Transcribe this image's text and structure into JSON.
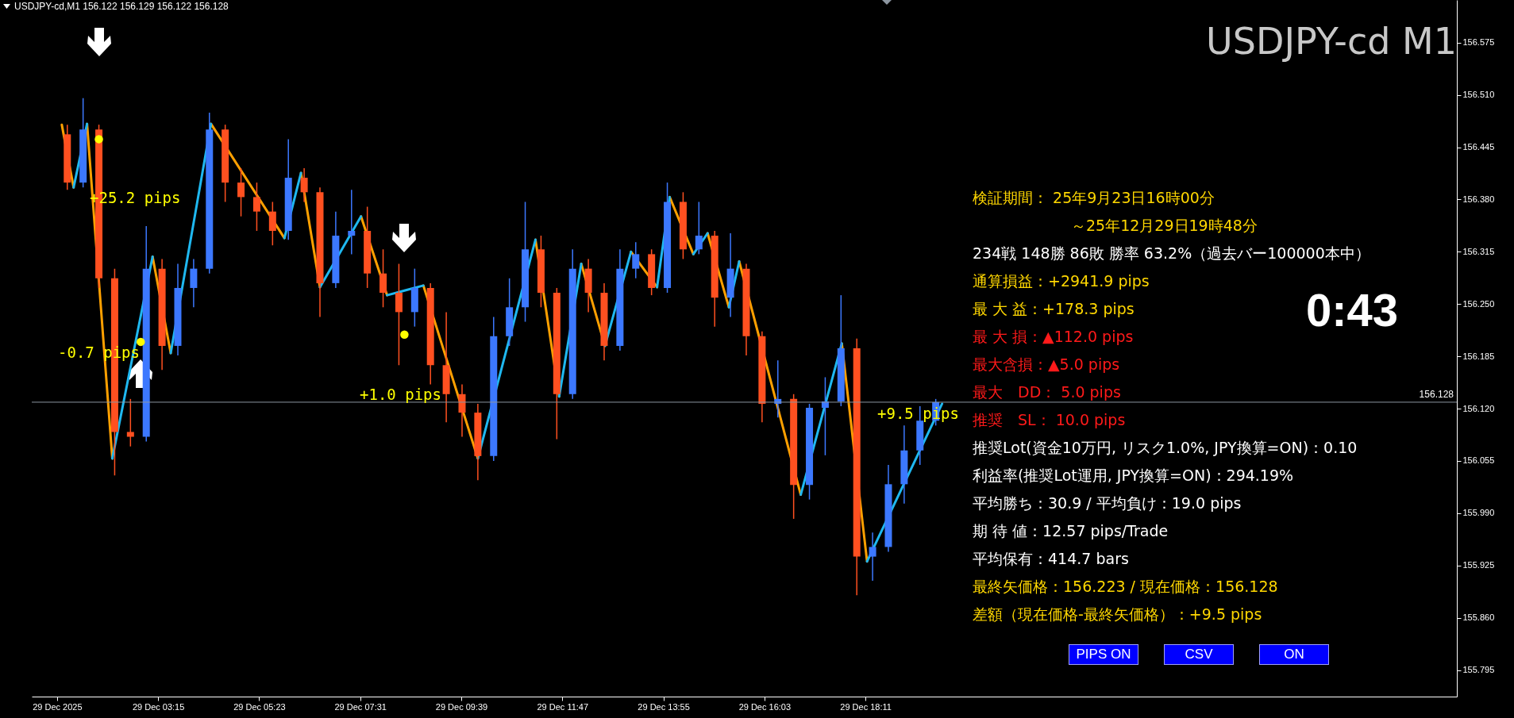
{
  "chart_data": {
    "type": "candlestick",
    "title": "USDJPY-cd M1",
    "x": [
      "2025-12-29T01:20",
      "2025-12-29T01:40",
      "2025-12-29T02:00",
      "2025-12-29T02:20",
      "2025-12-29T02:40",
      "2025-12-29T03:00",
      "2025-12-29T03:20",
      "2025-12-29T03:40",
      "2025-12-29T04:00",
      "2025-12-29T04:20",
      "2025-12-29T04:40",
      "2025-12-29T05:00",
      "2025-12-29T05:20",
      "2025-12-29T05:40",
      "2025-12-29T06:00",
      "2025-12-29T06:20",
      "2025-12-29T06:40",
      "2025-12-29T07:00",
      "2025-12-29T07:20",
      "2025-12-29T07:40",
      "2025-12-29T08:00",
      "2025-12-29T08:20",
      "2025-12-29T08:40",
      "2025-12-29T09:00",
      "2025-12-29T09:20",
      "2025-12-29T09:40",
      "2025-12-29T10:00",
      "2025-12-29T10:20",
      "2025-12-29T10:40",
      "2025-12-29T11:00",
      "2025-12-29T11:20",
      "2025-12-29T11:40",
      "2025-12-29T12:00",
      "2025-12-29T12:20",
      "2025-12-29T12:40",
      "2025-12-29T13:00",
      "2025-12-29T13:20",
      "2025-12-29T13:40",
      "2025-12-29T14:00",
      "2025-12-29T14:20",
      "2025-12-29T14:40",
      "2025-12-29T15:00",
      "2025-12-29T15:20",
      "2025-12-29T15:40",
      "2025-12-29T16:00",
      "2025-12-29T16:20",
      "2025-12-29T16:40",
      "2025-12-29T17:00",
      "2025-12-29T17:20",
      "2025-12-29T17:40",
      "2025-12-29T18:00",
      "2025-12-29T18:20",
      "2025-12-29T18:40",
      "2025-12-29T19:00",
      "2025-12-29T19:20",
      "2025-12-29T19:40"
    ],
    "ohlc": [
      [
        156.461,
        156.473,
        156.392,
        156.401
      ],
      [
        156.401,
        156.506,
        156.395,
        156.467
      ],
      [
        156.467,
        156.473,
        156.27,
        156.282
      ],
      [
        156.282,
        156.294,
        156.037,
        156.091
      ],
      [
        156.091,
        156.132,
        156.073,
        156.085
      ],
      [
        156.085,
        156.347,
        156.079,
        156.294
      ],
      [
        156.294,
        156.306,
        156.168,
        156.198
      ],
      [
        156.198,
        156.3,
        156.186,
        156.27
      ],
      [
        156.27,
        156.306,
        156.246,
        156.294
      ],
      [
        156.294,
        156.488,
        156.288,
        156.467
      ],
      [
        156.467,
        156.473,
        156.377,
        156.401
      ],
      [
        156.401,
        156.419,
        156.359,
        156.383
      ],
      [
        156.383,
        156.401,
        156.341,
        156.365
      ],
      [
        156.365,
        156.377,
        156.323,
        156.341
      ],
      [
        156.341,
        156.455,
        156.33,
        156.407
      ],
      [
        156.407,
        156.419,
        156.377,
        156.389
      ],
      [
        156.389,
        156.395,
        156.234,
        156.276
      ],
      [
        156.276,
        156.365,
        156.27,
        156.335
      ],
      [
        156.335,
        156.392,
        156.312,
        156.341
      ],
      [
        156.341,
        156.371,
        156.27,
        156.288
      ],
      [
        156.288,
        156.318,
        156.246,
        156.264
      ],
      [
        156.264,
        156.3,
        156.174,
        156.24
      ],
      [
        156.24,
        156.294,
        156.222,
        156.27
      ],
      [
        156.27,
        156.276,
        156.15,
        156.174
      ],
      [
        156.174,
        156.24,
        156.103,
        156.138
      ],
      [
        156.138,
        156.15,
        156.085,
        156.115
      ],
      [
        156.115,
        156.126,
        156.031,
        156.061
      ],
      [
        156.061,
        156.234,
        156.055,
        156.21
      ],
      [
        156.21,
        156.282,
        156.198,
        156.246
      ],
      [
        156.246,
        156.377,
        156.228,
        156.318
      ],
      [
        156.318,
        156.335,
        156.246,
        156.264
      ],
      [
        156.264,
        156.27,
        156.082,
        156.138
      ],
      [
        156.138,
        156.318,
        156.132,
        156.294
      ],
      [
        156.294,
        156.306,
        156.24,
        156.264
      ],
      [
        156.264,
        156.276,
        156.18,
        156.198
      ],
      [
        156.198,
        156.318,
        156.192,
        156.294
      ],
      [
        156.294,
        156.327,
        156.282,
        156.312
      ],
      [
        156.312,
        156.318,
        156.261,
        156.27
      ],
      [
        156.27,
        156.401,
        156.264,
        156.377
      ],
      [
        156.377,
        156.389,
        156.306,
        156.318
      ],
      [
        156.318,
        156.377,
        156.312,
        156.335
      ],
      [
        156.335,
        156.341,
        156.222,
        156.258
      ],
      [
        156.258,
        156.338,
        156.234,
        156.294
      ],
      [
        156.294,
        156.3,
        156.186,
        156.21
      ],
      [
        156.21,
        156.216,
        156.103,
        156.126
      ],
      [
        156.126,
        156.18,
        156.109,
        156.132
      ],
      [
        156.132,
        156.138,
        155.983,
        156.025
      ],
      [
        156.025,
        156.126,
        156.007,
        156.121
      ],
      [
        156.121,
        156.159,
        156.062,
        156.129
      ],
      [
        156.129,
        156.261,
        156.123,
        156.195
      ],
      [
        156.195,
        156.207,
        155.888,
        155.936
      ],
      [
        155.936,
        155.966,
        155.906,
        155.948
      ],
      [
        155.948,
        156.05,
        155.942,
        156.026
      ],
      [
        156.026,
        156.099,
        156.002,
        156.068
      ],
      [
        156.068,
        156.123,
        156.05,
        156.105
      ],
      [
        156.105,
        156.132,
        156.099,
        156.128
      ]
    ],
    "colors": [
      "#ff5020",
      "#3c78ff",
      "#ff5020",
      "#ff5020",
      "#ff5020",
      "#3c78ff",
      "#ff5020",
      "#3c78ff",
      "#3c78ff",
      "#3c78ff",
      "#ff5020",
      "#ff5020",
      "#ff5020",
      "#ff5020",
      "#3c78ff",
      "#ff5020",
      "#ff5020",
      "#3c78ff",
      "#3c78ff",
      "#ff5020",
      "#ff5020",
      "#ff5020",
      "#3c78ff",
      "#ff5020",
      "#ff5020",
      "#ff5020",
      "#ff5020",
      "#3c78ff",
      "#3c78ff",
      "#3c78ff",
      "#ff5020",
      "#ff5020",
      "#3c78ff",
      "#ff5020",
      "#ff5020",
      "#3c78ff",
      "#3c78ff",
      "#ff5020",
      "#3c78ff",
      "#ff5020",
      "#3c78ff",
      "#ff5020",
      "#3c78ff",
      "#ff5020",
      "#ff5020",
      "#3c78ff",
      "#ff5020",
      "#3c78ff",
      "#3c78ff",
      "#3c78ff",
      "#ff5020",
      "#3c78ff",
      "#3c78ff",
      "#3c78ff",
      "#3c78ff",
      "#3c78ff"
    ],
    "series": [
      {
        "type": "line",
        "color": "#ffa000",
        "x": [
          "2025-12-29T01:13",
          "2025-12-29T01:28",
          "2025-12-29T01:36",
          "2025-12-29T01:45",
          "2025-12-29T02:17",
          "2025-12-29T02:40",
          "2025-12-29T03:08",
          "2025-12-29T03:31",
          "2025-12-29T03:50",
          "2025-12-29T04:22",
          "2025-12-29T05:55",
          "2025-12-29T06:05",
          "2025-12-29T06:16",
          "2025-12-29T06:40",
          "2025-12-29T07:00",
          "2025-12-29T07:32",
          "2025-12-29T08:05",
          "2025-12-29T08:30",
          "2025-12-29T08:51",
          "2025-12-29T10:00",
          "2025-12-29T10:30",
          "2025-12-29T11:13",
          "2025-12-29T11:43",
          "2025-12-29T11:55",
          "2025-12-29T12:11",
          "2025-12-29T12:41",
          "2025-12-29T13:00",
          "2025-12-29T13:14",
          "2025-12-29T13:47",
          "2025-12-29T13:52",
          "2025-12-29T14:03",
          "2025-12-29T14:33",
          "2025-12-29T14:40",
          "2025-12-29T14:51",
          "2025-12-29T15:18",
          "2025-12-29T15:25",
          "2025-12-29T15:31",
          "2025-12-29T16:49",
          "2025-12-29T17:10",
          "2025-12-29T17:41",
          "2025-12-29T18:13"
        ],
        "values": [
          156.473,
          156.395,
          null,
          156.474,
          156.058,
          null,
          156.309,
          156.189,
          null,
          156.474,
          156.332,
          null,
          156.413,
          156.271,
          null,
          156.359,
          156.261,
          null,
          156.273,
          156.058,
          null,
          156.33,
          156.135,
          null,
          156.3,
          156.198,
          null,
          156.315,
          156.271,
          null,
          156.383,
          156.312,
          null,
          156.338,
          156.246,
          null,
          156.303,
          156.013,
          null,
          156.201,
          155.93
        ]
      },
      {
        "type": "line",
        "color": "#1fb8f0",
        "x": [
          "2025-12-29T01:28",
          "2025-12-29T01:45",
          "2025-12-29T02:00",
          "2025-12-29T02:17",
          "2025-12-29T03:08",
          "2025-12-29T03:20",
          "2025-12-29T03:31",
          "2025-12-29T04:22",
          "2025-12-29T05:00",
          "2025-12-29T05:55",
          "2025-12-29T06:16",
          "2025-12-29T06:30",
          "2025-12-29T06:40",
          "2025-12-29T07:32",
          "2025-12-29T07:50",
          "2025-12-29T08:05",
          "2025-12-29T08:51",
          "2025-12-29T09:30",
          "2025-12-29T10:00",
          "2025-12-29T11:13",
          "2025-12-29T11:30",
          "2025-12-29T11:43",
          "2025-12-29T12:11",
          "2025-12-29T12:25",
          "2025-12-29T12:41",
          "2025-12-29T13:14",
          "2025-12-29T13:30",
          "2025-12-29T13:47",
          "2025-12-29T14:03",
          "2025-12-29T14:20",
          "2025-12-29T14:33",
          "2025-12-29T14:51",
          "2025-12-29T15:05",
          "2025-12-29T15:18",
          "2025-12-29T15:31",
          "2025-12-29T16:10",
          "2025-12-29T16:49",
          "2025-12-29T17:41",
          "2025-12-29T17:55",
          "2025-12-29T18:13",
          "2025-12-29T19:48"
        ],
        "values": [
          156.395,
          156.474,
          null,
          156.058,
          156.309,
          null,
          156.189,
          156.474,
          null,
          156.332,
          156.413,
          null,
          156.271,
          156.359,
          null,
          156.261,
          156.273,
          null,
          156.058,
          156.33,
          null,
          156.135,
          156.3,
          null,
          156.198,
          156.315,
          null,
          156.271,
          156.383,
          null,
          156.312,
          156.338,
          null,
          156.246,
          156.303,
          null,
          156.013,
          156.201,
          null,
          155.93,
          156.126
        ]
      },
      {
        "type": "scatter",
        "color": "#ffff00",
        "x": [
          "2025-12-29T02:00",
          "2025-12-29T02:53",
          "2025-12-29T08:27"
        ],
        "values": [
          156.455,
          156.203,
          156.212
        ]
      }
    ],
    "xlim": [
      "2025-12-29T00:40",
      "2025-12-30T06:35"
    ],
    "xticks": [
      {
        "value": "2025-12-29T01:07",
        "label": "29 Dec 2025"
      },
      {
        "value": "2025-12-29T03:15",
        "label": "29 Dec 03:15"
      },
      {
        "value": "2025-12-29T05:23",
        "label": "29 Dec 05:23"
      },
      {
        "value": "2025-12-29T07:31",
        "label": "29 Dec 07:31"
      },
      {
        "value": "2025-12-29T09:39",
        "label": "29 Dec 09:39"
      },
      {
        "value": "2025-12-29T11:47",
        "label": "29 Dec 11:47"
      },
      {
        "value": "2025-12-29T13:55",
        "label": "29 Dec 13:55"
      },
      {
        "value": "2025-12-29T16:03",
        "label": "29 Dec 16:03"
      },
      {
        "value": "2025-12-29T18:11",
        "label": "29 Dec 18:11"
      }
    ],
    "ylim": [
      155.762,
      156.628
    ],
    "yticks": [
      {
        "value": 156.575,
        "label": "156.575"
      },
      {
        "value": 156.51,
        "label": "156.510"
      },
      {
        "value": 156.445,
        "label": "156.445"
      },
      {
        "value": 156.38,
        "label": "156.380"
      },
      {
        "value": 156.315,
        "label": "156.315"
      },
      {
        "value": 156.25,
        "label": "156.250"
      },
      {
        "value": 156.185,
        "label": "156.185"
      },
      {
        "value": 156.12,
        "label": "156.120"
      },
      {
        "value": 156.055,
        "label": "156.055"
      },
      {
        "value": 155.99,
        "label": "155.990"
      },
      {
        "value": 155.925,
        "label": "155.925"
      },
      {
        "value": 155.86,
        "label": "155.860"
      },
      {
        "value": 155.795,
        "label": "155.795"
      }
    ],
    "ref_lines": [
      {
        "axis": "y",
        "value": 156.128,
        "label": "156.128",
        "color": "#8c96a0"
      }
    ],
    "annotations": [
      "USDJPY-cd,M1  156.122 156.129 156.122 156.128",
      "0:43",
      "検証期間： 25年9月23日16時00分",
      "～25年12月29日19時48分",
      "234戦 148勝 86敗 勝率 63.2%（過去バー100000本中）",
      "通算損益：+2941.9 pips",
      "最 大 益：+178.3 pips",
      "最 大 損：▲112.0 pips",
      "最大含損：▲5.0 pips",
      "最大　DD： 5.0 pips",
      "推奨　SL： 10.0 pips",
      "推奨Lot(資金10万円, リスク1.0%, JPY換算=ON)：0.10",
      "利益率(推奨Lot運用, JPY換算=ON)：294.19%",
      "平均勝ち：30.9 / 平均負け：19.0 pips",
      "期 待 値：12.57 pips/Trade",
      "平均保有：414.7 bars",
      "最終矢価格：156.223 / 現在価格：156.128",
      "差額（現在価格-最終矢価格）：+9.5 pips",
      "PIPS ON",
      "CSV",
      "ON",
      "+25.2 pips",
      "-0.7 pips",
      "+1.0 pips",
      "+9.5 pips"
    ]
  }
}
